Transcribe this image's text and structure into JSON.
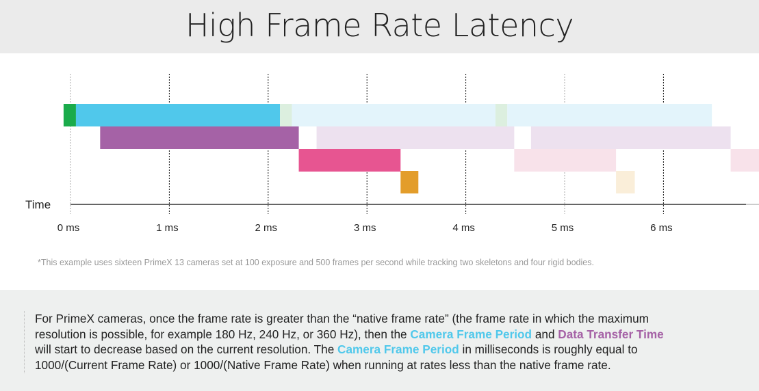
{
  "title": "High Frame Rate Latency",
  "timeline": {
    "axis_label": "Time",
    "unit": "ms",
    "ticks": [
      0,
      1,
      2,
      3,
      4,
      5,
      6
    ],
    "tick_labels": [
      "0 ms",
      "1 ms",
      "2 ms",
      "3 ms",
      "4 ms",
      "5 ms",
      "6 ms"
    ],
    "colors": {
      "green": "#1aab4b",
      "green_light": "#dcefdf",
      "cyan": "#50c8eb",
      "cyan_light": "#e3f4fb",
      "purple": "#a562a6",
      "purple_light": "#ede1ef",
      "pink": "#e75591",
      "pink_light": "#f8e2ea",
      "orange": "#e39d2b",
      "orange_light": "#faeed9"
    },
    "rows": [
      [
        {
          "start": -0.07,
          "end": 0.055,
          "color": "green"
        },
        {
          "start": 0.055,
          "end": 2.12,
          "color": "cyan"
        },
        {
          "start": 2.12,
          "end": 2.24,
          "color": "green_light"
        },
        {
          "start": 2.24,
          "end": 4.3,
          "color": "cyan_light"
        },
        {
          "start": 4.3,
          "end": 4.42,
          "color": "green_light"
        },
        {
          "start": 4.42,
          "end": 6.49,
          "color": "cyan_light"
        }
      ],
      [
        {
          "start": 0.3,
          "end": 2.31,
          "color": "purple"
        },
        {
          "start": 2.49,
          "end": 4.49,
          "color": "purple_light"
        },
        {
          "start": 4.66,
          "end": 6.68,
          "color": "purple_light"
        }
      ],
      [
        {
          "start": 2.31,
          "end": 3.34,
          "color": "pink"
        },
        {
          "start": 4.49,
          "end": 5.52,
          "color": "pink_light"
        },
        {
          "start": 6.68,
          "end": 7.0,
          "color": "pink_light"
        }
      ],
      [
        {
          "start": 3.34,
          "end": 3.52,
          "color": "orange"
        },
        {
          "start": 5.52,
          "end": 5.71,
          "color": "orange_light"
        }
      ]
    ]
  },
  "footnote": "*This example uses sixteen PrimeX 13 cameras set at 100 exposure and 500 frames per second while tracking two skeletons and four rigid bodies.",
  "info": {
    "lines": [
      [
        {
          "text": "For PrimeX cameras, once the frame rate is greater than the “native frame rate” (the frame rate in which the maximum",
          "style": ""
        }
      ],
      [
        {
          "text": "resolution is possible, for example 180 Hz, 240 Hz, or 360 Hz), then the ",
          "style": ""
        },
        {
          "text": "Camera Frame Period",
          "style": "hl-cyan"
        },
        {
          "text": " and ",
          "style": ""
        },
        {
          "text": "Data Transfer Time",
          "style": "hl-purple"
        }
      ],
      [
        {
          "text": "will start to decrease based on the current resolution. The ",
          "style": ""
        },
        {
          "text": "Camera Frame Period",
          "style": "hl-cyan"
        },
        {
          "text": " in milliseconds is roughly equal to",
          "style": ""
        }
      ],
      [
        {
          "text": "1000/(Current Frame Rate) or 1000/(Native Frame Rate) when running at rates less than the native frame rate.",
          "style": ""
        }
      ]
    ]
  }
}
